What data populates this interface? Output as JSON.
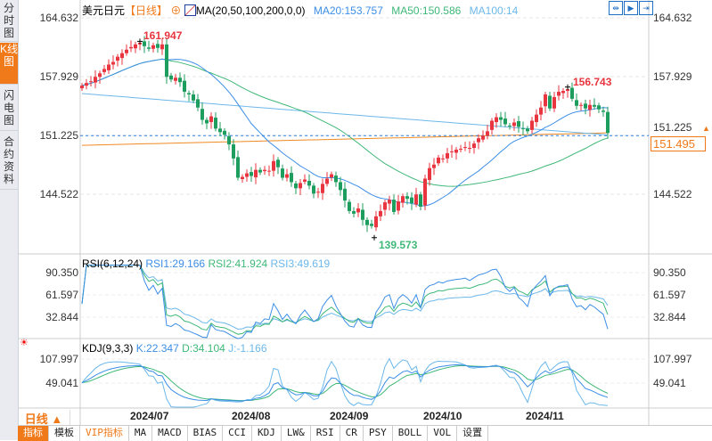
{
  "sidebar": {
    "tabs": [
      "分时图",
      "K线图",
      "闪电图",
      "合约资料"
    ]
  },
  "header": {
    "symbol": "美元日元",
    "period": "【日线】",
    "ma_label": "MA(20,50,100,200,0,0)",
    "ma20": "MA20:153.757",
    "ma50": "MA50:150.586",
    "ma100": "MA100:14"
  },
  "price_axis": {
    "labels": [
      "164.632",
      "157.929",
      "151.225",
      "144.522"
    ],
    "current": "151.495"
  },
  "annotations": {
    "high1": "161.947",
    "high2": "156.743",
    "low": "139.573"
  },
  "rsi": {
    "title": "RSI(6,12,24)",
    "rsi1": "RSI1:29.166",
    "rsi2": "RSI2:41.924",
    "rsi3": "RSI3:49.619",
    "labels": [
      "90.350",
      "61.597",
      "32.844"
    ]
  },
  "kdj": {
    "title": "KDJ(9,3,3)",
    "k": "K:22.347",
    "d": "D:34.104",
    "j": "J:-1.166",
    "labels": [
      "107.997",
      "49.041"
    ]
  },
  "time_axis": {
    "period_button": "日线 ▲",
    "labels": [
      "2024/07",
      "2024/08",
      "2024/09",
      "2024/10",
      "2024/11"
    ]
  },
  "bottom_tabs": [
    "指标",
    "模板",
    "VIP指标",
    "MA",
    "MACD",
    "BIAS",
    "CCI",
    "KDJ",
    "LW&",
    "RSI",
    "CR",
    "PSY",
    "BOLL",
    "VOL",
    "设置"
  ],
  "colors": {
    "up": "#e8353f",
    "down": "#1e9e5e",
    "ma20": "#3c8ee6",
    "ma50": "#3fb878",
    "ma100": "#6cb8ea",
    "ma200": "#f08a24",
    "accent": "#f07a1a"
  },
  "chart_data": {
    "type": "candlestick",
    "ylim": [
      139.0,
      166.0
    ],
    "closes": [
      156.9,
      157.2,
      157.4,
      157.9,
      158.3,
      158.8,
      159.3,
      159.6,
      160.2,
      160.6,
      161.0,
      161.3,
      161.6,
      161.8,
      161.4,
      161.1,
      161.5,
      161.2,
      161.6,
      157.9,
      157.6,
      157.8,
      157.3,
      156.2,
      155.9,
      155.2,
      154.4,
      153.0,
      152.6,
      153.4,
      152.0,
      151.6,
      151.3,
      150.2,
      148.6,
      146.4,
      146.5,
      146.9,
      146.6,
      147.3,
      147.0,
      147.3,
      147.2,
      148.3,
      147.6,
      146.4,
      146.8,
      145.9,
      145.2,
      145.8,
      146.2,
      145.5,
      144.6,
      144.8,
      145.7,
      146.3,
      146.8,
      145.9,
      145.0,
      143.8,
      142.6,
      142.3,
      142.9,
      141.6,
      141.0,
      140.9,
      142.0,
      142.6,
      143.6,
      143.9,
      142.5,
      143.7,
      144.3,
      144.0,
      143.5,
      144.5,
      143.1,
      146.3,
      147.5,
      147.9,
      148.7,
      148.6,
      149.2,
      149.4,
      149.6,
      149.7,
      149.9,
      149.8,
      150.3,
      150.9,
      151.2,
      151.7,
      152.9,
      153.3,
      153.0,
      152.5,
      152.3,
      152.7,
      152.2,
      152.0,
      151.7,
      152.9,
      153.6,
      154.4,
      155.9,
      154.3,
      155.6,
      156.2,
      156.3,
      156.5,
      155.4,
      154.6,
      154.7,
      154.3,
      154.7,
      154.5,
      154.2,
      153.9,
      151.5
    ]
  }
}
